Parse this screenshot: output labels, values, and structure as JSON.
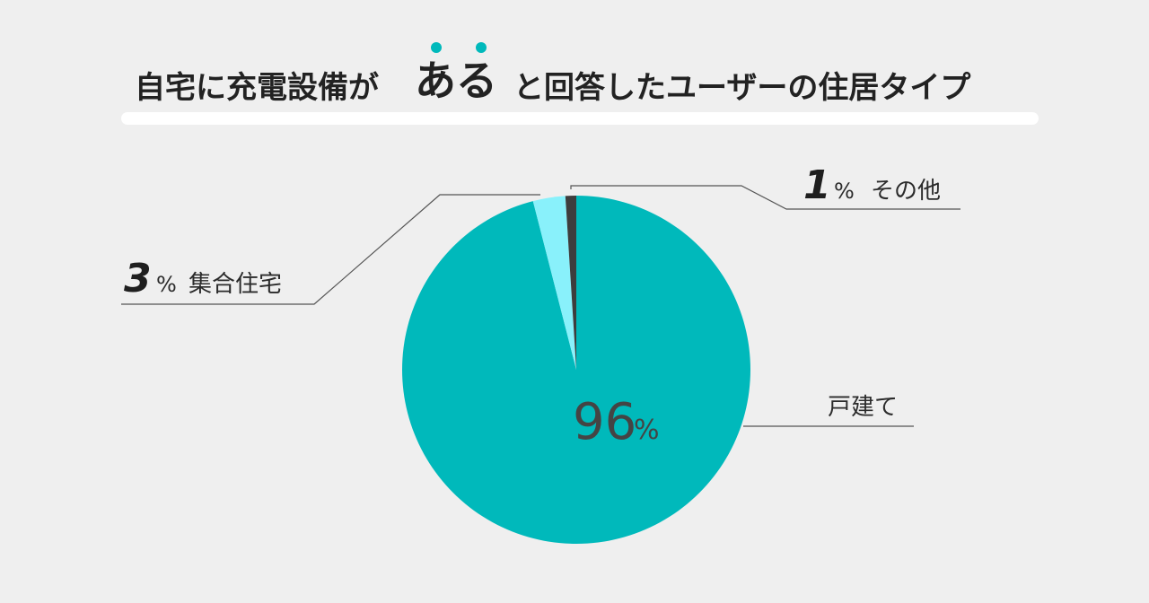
{
  "title": {
    "before": "自宅に充電設備が",
    "emphasis": "ある",
    "after": "と回答したユーザーの住居タイプ"
  },
  "colors": {
    "background": "#efefef",
    "main_slice": "#00b9bb",
    "secondary_slice": "#89f1fb",
    "other_slice": "#3d3d3d",
    "accent_dot": "#00b9bb",
    "leader_line": "#555555",
    "title_bar": "#ffffff"
  },
  "chart_data": {
    "type": "pie",
    "title": "自宅に充電設備がある と回答したユーザーの住居タイプ",
    "slices": [
      {
        "label": "戸建て",
        "value": 96,
        "display": "96",
        "unit": "%"
      },
      {
        "label": "集合住宅",
        "value": 3,
        "display": "3",
        "unit": "%"
      },
      {
        "label": "その他",
        "value": 1,
        "display": "1",
        "unit": "%"
      }
    ]
  }
}
